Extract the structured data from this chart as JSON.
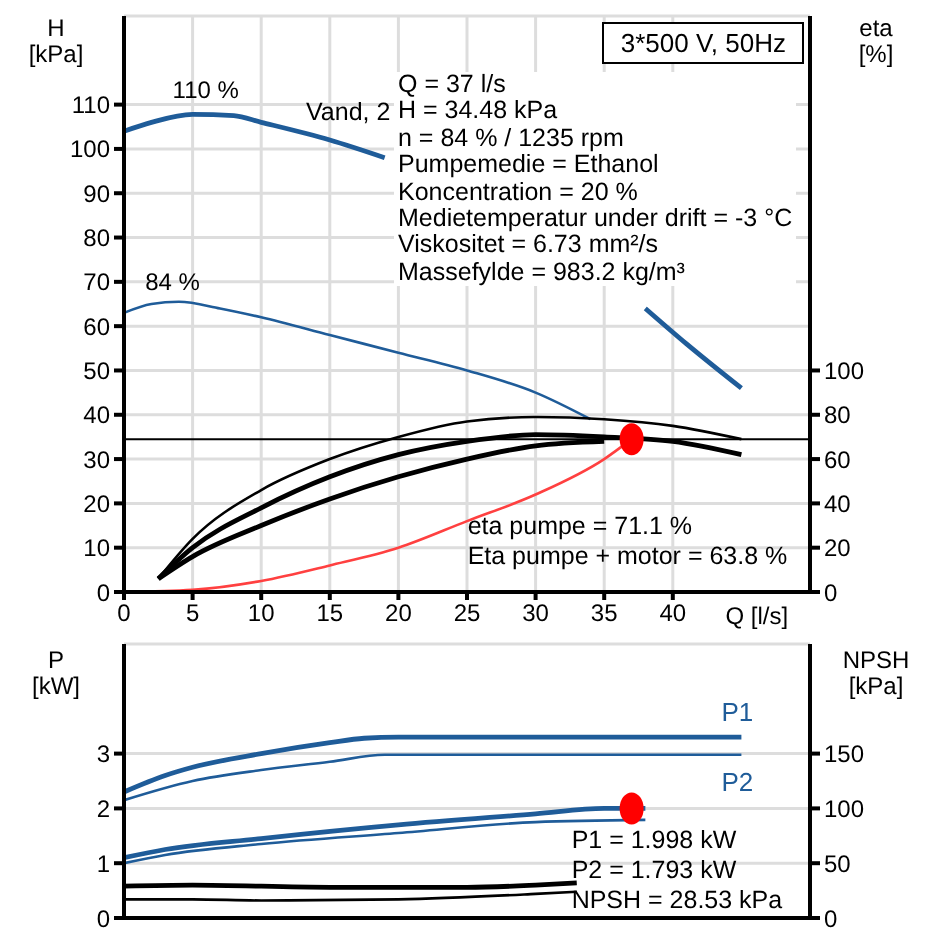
{
  "chart_data": [
    {
      "type": "line",
      "title": "3*500 V, 50Hz",
      "xlabel": "Q [l/s]",
      "ylabel": "H [kPa]",
      "y2label": "eta [%]",
      "xlim": [
        0,
        50
      ],
      "xticks": [
        0,
        5,
        10,
        15,
        20,
        25,
        30,
        35,
        40
      ],
      "ylim": [
        0,
        130
      ],
      "yticks": [
        0,
        10,
        20,
        30,
        40,
        50,
        60,
        70,
        80,
        90,
        100,
        110
      ],
      "y2lim": [
        0,
        260
      ],
      "y2ticks": [
        0,
        20,
        40,
        60,
        80,
        100
      ],
      "grid": true,
      "legend": false,
      "series": [
        {
          "color": "#1f5c99",
          "x": [
            0,
            2,
            5,
            8,
            10,
            15,
            19,
            30,
            38,
            41,
            45
          ],
          "values": [
            104,
            106,
            107.8,
            107.5,
            106,
            102,
            98,
            null,
            64,
            56,
            46
          ]
        },
        {
          "color": "#1f5c99",
          "x": [
            0,
            2,
            4,
            7,
            10,
            15,
            20,
            25,
            30,
            34
          ],
          "values": [
            63,
            65,
            65.5,
            64,
            62,
            58,
            54,
            50,
            45,
            39
          ]
        },
        {
          "color": "#000000",
          "axis": "y2",
          "x": [
            2.5,
            5,
            10,
            15,
            20,
            25,
            30,
            35,
            40,
            45
          ],
          "values": [
            6,
            20,
            38,
            52,
            62,
            68,
            71,
            70,
            68,
            62
          ]
        },
        {
          "color": "#000000",
          "axis": "y2",
          "x": [
            2.5,
            5,
            10,
            15,
            20,
            25,
            30,
            35,
            40,
            45
          ],
          "values": [
            6,
            24,
            46,
            60,
            70,
            77,
            79,
            78,
            75,
            69
          ]
        },
        {
          "color": "#000000",
          "axis": "y2",
          "x": [
            2.5,
            5,
            10,
            15,
            20,
            25,
            30,
            35
          ],
          "values": [
            6,
            16,
            30,
            42,
            52,
            60,
            66,
            68
          ]
        },
        {
          "color": "#ff4040",
          "x": [
            0,
            5,
            10,
            15,
            20,
            25,
            30,
            35,
            37
          ],
          "values": [
            0,
            0.5,
            2.5,
            6,
            10,
            16,
            22,
            30,
            34.5
          ]
        },
        {
          "type": "scatter",
          "color": "#ff0000",
          "x": [
            37
          ],
          "values": [
            34.5
          ]
        }
      ],
      "ref_lines": [
        {
          "axis": "y",
          "value": 34.5,
          "color": "#000000"
        }
      ],
      "annotations": [
        {
          "text": "110 %",
          "x": 5,
          "y": 110
        },
        {
          "text": "84 %",
          "x": 3,
          "y": 67
        },
        "Vand, 2",
        "Q = 37 l/s",
        "H = 34.48 kPa",
        "n = 84 % / 1235 rpm",
        "Pumpemedie = Ethanol",
        "Koncentration = 20 %",
        "Medietemperatur under drift = -3 °C",
        "Viskositet = 6.73 mm²/s",
        "Massefylde = 983.2 kg/m³",
        {
          "text": "eta pumpe = 71.1 %",
          "x": 37,
          "y": 34.5
        },
        "Eta pumpe + motor = 63.8 %"
      ]
    },
    {
      "type": "line",
      "ylabel": "P [kW]",
      "y2label": "NPSH [kPa]",
      "xlim": [
        0,
        50
      ],
      "xticks": [
        0,
        5,
        10,
        15,
        20,
        25,
        30,
        35,
        40
      ],
      "ylim": [
        0,
        5
      ],
      "yticks": [
        0,
        1,
        2,
        3
      ],
      "y2lim": [
        0,
        250
      ],
      "y2ticks": [
        0,
        50,
        100,
        150
      ],
      "grid": true,
      "legend": false,
      "tick_labels": "y",
      "series": [
        {
          "name": "P1",
          "color": "#1f5c99",
          "x": [
            0,
            3,
            5,
            10,
            15,
            17.5,
            20,
            30,
            45
          ],
          "values": [
            2.3,
            2.6,
            2.75,
            3.0,
            3.2,
            3.28,
            3.3,
            3.3,
            3.3
          ]
        },
        {
          "name": "P2",
          "color": "#1f5c99",
          "x": [
            0,
            5,
            10,
            15,
            19,
            30,
            45
          ],
          "values": [
            2.15,
            2.5,
            2.7,
            2.85,
            2.98,
            2.98,
            2.98
          ]
        },
        {
          "color": "#1f5c99",
          "x": [
            0,
            3,
            10,
            20,
            30,
            35,
            38
          ],
          "values": [
            1.1,
            1.25,
            1.45,
            1.7,
            1.9,
            2.0,
            2.0
          ]
        },
        {
          "color": "#1f5c99",
          "x": [
            0,
            3,
            10,
            20,
            30,
            38
          ],
          "values": [
            1.0,
            1.15,
            1.35,
            1.55,
            1.75,
            1.79
          ]
        },
        {
          "color": "#000000",
          "axis": "y2",
          "x": [
            0,
            5,
            15,
            25,
            30,
            33
          ],
          "values": [
            29,
            30,
            28,
            28,
            30,
            32
          ]
        },
        {
          "color": "#000000",
          "axis": "y2",
          "x": [
            0,
            5,
            10,
            20,
            30,
            33
          ],
          "values": [
            17,
            17,
            16,
            17,
            22,
            24
          ]
        },
        {
          "type": "scatter",
          "color": "#ff0000",
          "x": [
            37
          ],
          "values": [
            2.0
          ]
        }
      ],
      "annotations": [
        {
          "text": "P1 = 1.998 kW",
          "x": 37,
          "y": 2.0
        },
        "P2 = 1.793 kW",
        "NPSH = 28.53 kPa"
      ]
    }
  ]
}
